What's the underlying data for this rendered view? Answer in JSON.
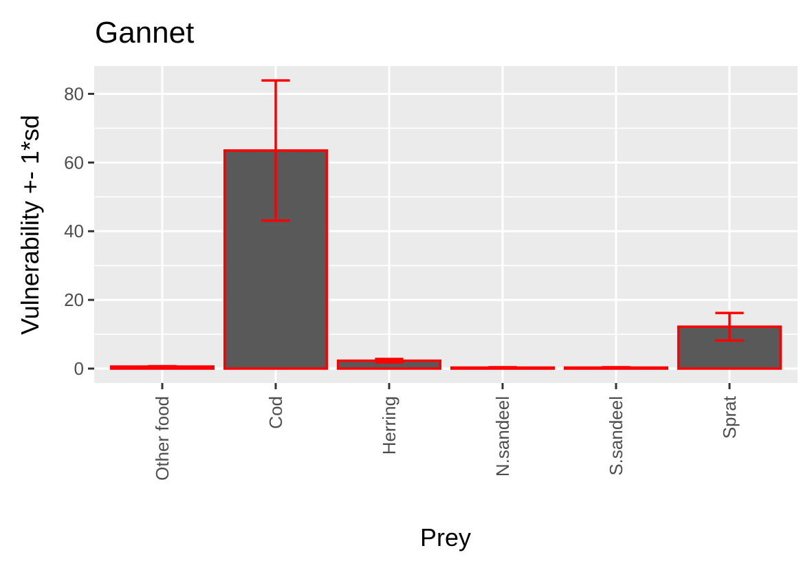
{
  "chart_data": {
    "type": "bar",
    "title": "Gannet",
    "xlabel": "Prey",
    "ylabel": "Vulnerability +- 1*sd",
    "categories": [
      "Other food",
      "Cod",
      "Herring",
      "N.sandeel",
      "S.sandeel",
      "Sprat"
    ],
    "values": [
      0.6,
      63.5,
      2.3,
      0.3,
      0.3,
      12.2
    ],
    "error_low": [
      0.5,
      43.1,
      1.8,
      0.2,
      0.2,
      8.2
    ],
    "error_high": [
      0.7,
      83.9,
      2.8,
      0.4,
      0.4,
      16.2
    ],
    "yticks": [
      0,
      20,
      40,
      60,
      80
    ],
    "ylim": [
      -4.2,
      88.1
    ],
    "grid": true,
    "colors": {
      "panel": "#ebebeb",
      "grid": "#ffffff",
      "bar_fill": "#595959",
      "bar_outline": "#ff0000",
      "errorbar": "#ff0000",
      "tick": "#333333"
    }
  }
}
